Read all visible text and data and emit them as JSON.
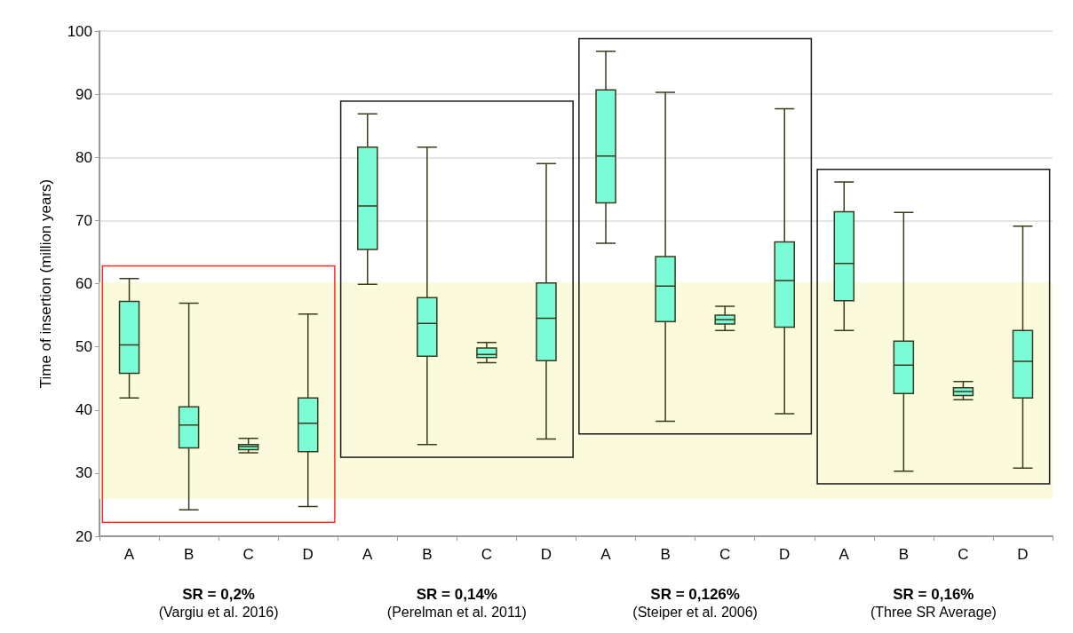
{
  "chart_data": {
    "type": "box",
    "ylabel": "Time of insertion (million years)",
    "categories": [
      "A",
      "B",
      "C",
      "D",
      "A",
      "B",
      "C",
      "D",
      "A",
      "B",
      "C",
      "D",
      "A",
      "B",
      "C",
      "D"
    ],
    "series": [
      {
        "color": "#7afcd6",
        "boxes": [
          {
            "low": 41.9,
            "q1": 45.8,
            "median": 50.3,
            "q3": 57.2,
            "high": 60.8
          },
          {
            "low": 24.2,
            "q1": 34.0,
            "median": 37.6,
            "q3": 40.5,
            "high": 56.9
          },
          {
            "low": 33.2,
            "q1": 33.7,
            "median": 34.2,
            "q3": 34.5,
            "high": 35.5
          },
          {
            "low": 24.7,
            "q1": 33.4,
            "median": 37.9,
            "q3": 41.9,
            "high": 55.2
          },
          {
            "low": 59.9,
            "q1": 65.4,
            "median": 72.3,
            "q3": 81.6,
            "high": 86.9
          },
          {
            "low": 34.5,
            "q1": 48.5,
            "median": 53.7,
            "q3": 57.8,
            "high": 81.6
          },
          {
            "low": 47.5,
            "q1": 48.3,
            "median": 48.8,
            "q3": 49.8,
            "high": 50.7
          },
          {
            "low": 35.4,
            "q1": 47.8,
            "median": 54.5,
            "q3": 60.1,
            "high": 79.0
          },
          {
            "low": 66.4,
            "q1": 72.8,
            "median": 80.2,
            "q3": 90.7,
            "high": 96.8
          },
          {
            "low": 38.2,
            "q1": 54.0,
            "median": 59.6,
            "q3": 64.3,
            "high": 90.3
          },
          {
            "low": 52.6,
            "q1": 53.6,
            "median": 54.3,
            "q3": 55.0,
            "high": 56.4
          },
          {
            "low": 39.4,
            "q1": 53.1,
            "median": 60.5,
            "q3": 66.6,
            "high": 87.7
          },
          {
            "low": 52.6,
            "q1": 57.3,
            "median": 63.2,
            "q3": 71.4,
            "high": 76.1
          },
          {
            "low": 30.3,
            "q1": 42.6,
            "median": 47.1,
            "q3": 50.9,
            "high": 71.3
          },
          {
            "low": 41.6,
            "q1": 42.3,
            "median": 42.9,
            "q3": 43.5,
            "high": 44.5
          },
          {
            "low": 30.8,
            "q1": 41.9,
            "median": 47.7,
            "q3": 52.6,
            "high": 69.1
          }
        ]
      }
    ],
    "ylim": [
      20,
      100
    ],
    "yticks": [
      20,
      30,
      40,
      50,
      60,
      70,
      80,
      90,
      100
    ],
    "grid": "y",
    "bands": [
      {
        "axis": "y",
        "from": 25.9,
        "to": 60.2,
        "color": "#fbfadc"
      }
    ],
    "annotations": [
      "SR = 0,2%",
      "(Vargiu et al. 2016)",
      "SR = 0,14%",
      "(Perelman et al. 2011)",
      "SR = 0,126%",
      "(Steiper et al. 2006)",
      "SR = 0,16%",
      "(Three SR Average)"
    ]
  }
}
